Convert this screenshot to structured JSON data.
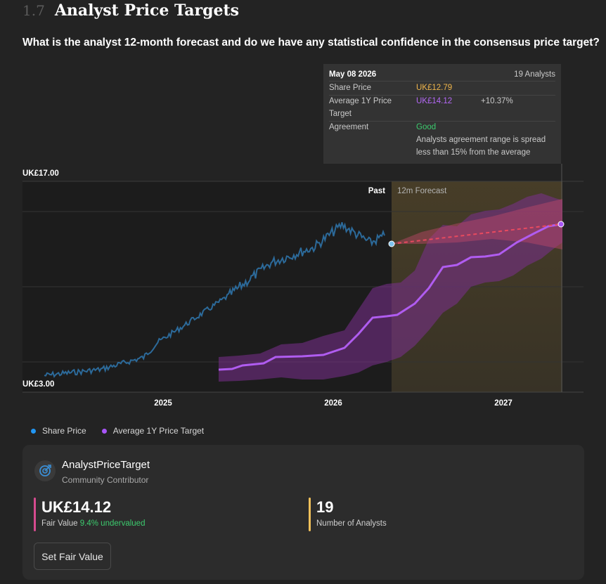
{
  "section": {
    "number": "1.7",
    "title": "Analyst Price Targets"
  },
  "question": "What is the analyst 12-month forecast and do we have any statistical confidence in the consensus price target?",
  "tooltip": {
    "date": "May 08 2026",
    "analysts": "19 Analysts",
    "share_price_label": "Share Price",
    "share_price_value": "UK£12.79",
    "target_label_line1": "Average 1Y Price",
    "target_label_line2": "Target",
    "target_value": "UK£14.12",
    "target_change": "+10.37%",
    "agreement_label": "Agreement",
    "agreement_value": "Good",
    "agreement_desc_line1": "Analysts agreement range is spread",
    "agreement_desc_line2": "less than 15% from the average"
  },
  "chart_labels": {
    "past": "Past",
    "forecast": "12m Forecast"
  },
  "colors": {
    "share_price": "#2c6a9a",
    "target": "#a855f7",
    "good": "#3ccb6e",
    "share_price_tt": "#f0b64b",
    "fair_value_bar": "#d64b8f",
    "analysts_bar": "#f0c05a"
  },
  "chart_data": {
    "type": "line",
    "ylim": [
      3,
      17
    ],
    "y_tick_labels": [
      "UK£17.00",
      "UK£3.00"
    ],
    "x_tick_labels": [
      "2025",
      "2026",
      "2027"
    ],
    "series": [
      {
        "name": "Share Price",
        "points": [
          [
            "2024-05",
            3.5
          ],
          [
            "2024-09",
            3.9
          ],
          [
            "2024-12",
            4.7
          ],
          [
            "2025-01",
            5.7
          ],
          [
            "2025-03",
            6.9
          ],
          [
            "2025-06",
            8.8
          ],
          [
            "2025-09",
            11.0
          ],
          [
            "2025-12",
            12.0
          ],
          [
            "2026-02",
            13.5
          ],
          [
            "2026-04",
            12.3
          ],
          [
            "2026-05",
            12.79
          ]
        ]
      },
      {
        "name": "Average 1Y Price Target",
        "points": [
          [
            "2025-05",
            4.0
          ],
          [
            "2025-08",
            4.5
          ],
          [
            "2025-11",
            5.7
          ],
          [
            "2026-02",
            7.2
          ],
          [
            "2026-05",
            9.7
          ],
          [
            "2026-09",
            11.4
          ],
          [
            "2026-12",
            13.5
          ],
          [
            "2027-05",
            14.12
          ]
        ]
      }
    ]
  },
  "legend": {
    "share_price": "Share Price",
    "target": "Average 1Y Price Target"
  },
  "card": {
    "name": "AnalystPriceTarget",
    "role": "Community Contributor",
    "fair_value": "UK£14.12",
    "fair_value_label": "Fair Value",
    "undervalued": "9.4% undervalued",
    "analysts_count": "19",
    "analysts_label": "Number of Analysts",
    "button": "Set Fair Value"
  }
}
